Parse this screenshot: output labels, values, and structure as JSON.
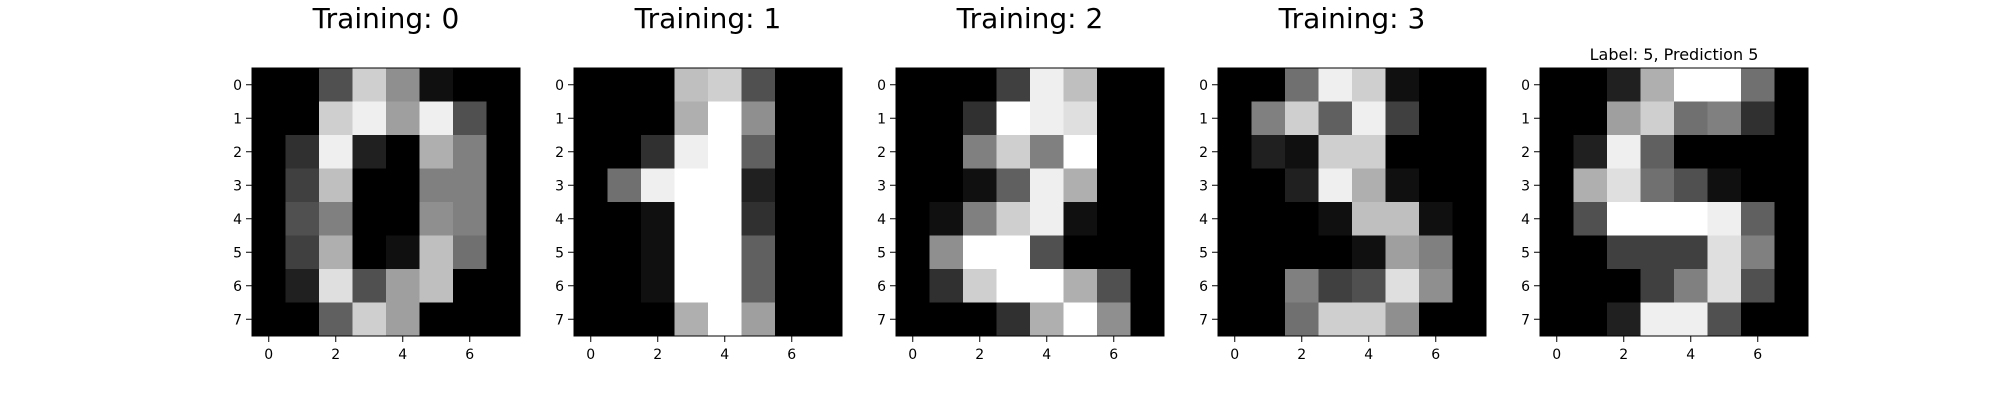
{
  "chart_data": [
    {
      "type": "heatmap",
      "title": "Training: 0",
      "colormap": "gray_r",
      "value_range": [
        0,
        16
      ],
      "xticks": [
        "0",
        "2",
        "4",
        "6"
      ],
      "yticks": [
        "0",
        "1",
        "2",
        "3",
        "4",
        "5",
        "6",
        "7"
      ],
      "z": [
        [
          0,
          0,
          5,
          13,
          9,
          1,
          0,
          0
        ],
        [
          0,
          0,
          13,
          15,
          10,
          15,
          5,
          0
        ],
        [
          0,
          3,
          15,
          2,
          0,
          11,
          8,
          0
        ],
        [
          0,
          4,
          12,
          0,
          0,
          8,
          8,
          0
        ],
        [
          0,
          5,
          8,
          0,
          0,
          9,
          8,
          0
        ],
        [
          0,
          4,
          11,
          0,
          1,
          12,
          7,
          0
        ],
        [
          0,
          2,
          14,
          5,
          10,
          12,
          0,
          0
        ],
        [
          0,
          0,
          6,
          13,
          10,
          0,
          0,
          0
        ]
      ]
    },
    {
      "type": "heatmap",
      "title": "Training: 1",
      "colormap": "gray_r",
      "value_range": [
        0,
        16
      ],
      "xticks": [
        "0",
        "2",
        "4",
        "6"
      ],
      "yticks": [
        "0",
        "1",
        "2",
        "3",
        "4",
        "5",
        "6",
        "7"
      ],
      "z": [
        [
          0,
          0,
          0,
          12,
          13,
          5,
          0,
          0
        ],
        [
          0,
          0,
          0,
          11,
          16,
          9,
          0,
          0
        ],
        [
          0,
          0,
          3,
          15,
          16,
          6,
          0,
          0
        ],
        [
          0,
          7,
          15,
          16,
          16,
          2,
          0,
          0
        ],
        [
          0,
          0,
          1,
          16,
          16,
          3,
          0,
          0
        ],
        [
          0,
          0,
          1,
          16,
          16,
          6,
          0,
          0
        ],
        [
          0,
          0,
          1,
          16,
          16,
          6,
          0,
          0
        ],
        [
          0,
          0,
          0,
          11,
          16,
          10,
          0,
          0
        ]
      ]
    },
    {
      "type": "heatmap",
      "title": "Training: 2",
      "colormap": "gray_r",
      "value_range": [
        0,
        16
      ],
      "xticks": [
        "0",
        "2",
        "4",
        "6"
      ],
      "yticks": [
        "0",
        "1",
        "2",
        "3",
        "4",
        "5",
        "6",
        "7"
      ],
      "z": [
        [
          0,
          0,
          0,
          4,
          15,
          12,
          0,
          0
        ],
        [
          0,
          0,
          3,
          16,
          15,
          14,
          0,
          0
        ],
        [
          0,
          0,
          8,
          13,
          8,
          16,
          0,
          0
        ],
        [
          0,
          0,
          1,
          6,
          15,
          11,
          0,
          0
        ],
        [
          0,
          1,
          8,
          13,
          15,
          1,
          0,
          0
        ],
        [
          0,
          9,
          16,
          16,
          5,
          0,
          0,
          0
        ],
        [
          0,
          3,
          13,
          16,
          16,
          11,
          5,
          0
        ],
        [
          0,
          0,
          0,
          3,
          11,
          16,
          9,
          0
        ]
      ]
    },
    {
      "type": "heatmap",
      "title": "Training: 3",
      "colormap": "gray_r",
      "value_range": [
        0,
        16
      ],
      "xticks": [
        "0",
        "2",
        "4",
        "6"
      ],
      "yticks": [
        "0",
        "1",
        "2",
        "3",
        "4",
        "5",
        "6",
        "7"
      ],
      "z": [
        [
          0,
          0,
          7,
          15,
          13,
          1,
          0,
          0
        ],
        [
          0,
          8,
          13,
          6,
          15,
          4,
          0,
          0
        ],
        [
          0,
          2,
          1,
          13,
          13,
          0,
          0,
          0
        ],
        [
          0,
          0,
          2,
          15,
          11,
          1,
          0,
          0
        ],
        [
          0,
          0,
          0,
          1,
          12,
          12,
          1,
          0
        ],
        [
          0,
          0,
          0,
          0,
          1,
          10,
          8,
          0
        ],
        [
          0,
          0,
          8,
          4,
          5,
          14,
          9,
          0
        ],
        [
          0,
          0,
          7,
          13,
          13,
          9,
          0,
          0
        ]
      ]
    },
    {
      "type": "heatmap",
      "title": "Label: 5, Prediction 5",
      "colormap": "gray_r",
      "value_range": [
        0,
        16
      ],
      "xticks": [
        "0",
        "2",
        "4",
        "6"
      ],
      "yticks": [
        "0",
        "1",
        "2",
        "3",
        "4",
        "5",
        "6",
        "7"
      ],
      "z": [
        [
          0,
          0,
          2,
          11,
          16,
          16,
          7,
          0
        ],
        [
          0,
          0,
          10,
          13,
          7,
          8,
          3,
          0
        ],
        [
          0,
          2,
          15,
          6,
          0,
          0,
          0,
          0
        ],
        [
          0,
          11,
          14,
          7,
          5,
          1,
          0,
          0
        ],
        [
          0,
          5,
          16,
          16,
          16,
          15,
          6,
          0
        ],
        [
          0,
          0,
          4,
          4,
          4,
          14,
          8,
          0
        ],
        [
          0,
          0,
          0,
          4,
          8,
          14,
          5,
          0
        ],
        [
          0,
          0,
          2,
          15,
          15,
          5,
          0,
          0
        ]
      ]
    }
  ]
}
